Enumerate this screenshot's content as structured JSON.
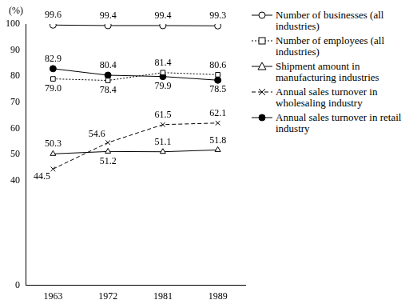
{
  "chart_data": {
    "type": "line",
    "ylabel": "(%)",
    "categories": [
      "1963",
      "1972",
      "1981",
      "1989"
    ],
    "ylim": [
      0,
      100
    ],
    "yticks": [
      0,
      40,
      50,
      60,
      70,
      80,
      90,
      100
    ],
    "grid": false,
    "legend": "right",
    "data_labels": true,
    "series": [
      {
        "name": "Number of businesses (all industries)",
        "color": "#000000",
        "marker": "circle-open",
        "line_style": "solid",
        "values": [
          99.6,
          99.4,
          99.4,
          99.3
        ],
        "value_labels": [
          "99.6",
          "99.4",
          "99.4",
          "99.3"
        ]
      },
      {
        "name": "Number of employees (all industries)",
        "color": "#000000",
        "marker": "square-open",
        "line_style": "dotted",
        "values": [
          79.0,
          78.4,
          81.4,
          80.6
        ],
        "value_labels": [
          "79.0",
          "78.4",
          "81.4",
          "80.6"
        ]
      },
      {
        "name": "Shipment amount in manufacturing industries",
        "color": "#000000",
        "marker": "triangle-open",
        "line_style": "solid",
        "values": [
          50.3,
          51.2,
          51.1,
          51.8
        ],
        "value_labels": [
          "50.3",
          "51.2",
          "51.1",
          "51.8"
        ]
      },
      {
        "name": "Annual sales turnover in wholesaling industry",
        "color": "#000000",
        "marker": "x",
        "line_style": "dashed",
        "values": [
          44.5,
          54.6,
          61.5,
          62.1
        ],
        "value_labels": [
          "44.5",
          "54.6",
          "61.5",
          "62.1"
        ]
      },
      {
        "name": "Annual sales turnover in retail industry",
        "color": "#000000",
        "marker": "circle",
        "line_style": "solid",
        "values": [
          82.9,
          80.4,
          79.9,
          78.5
        ],
        "value_labels": [
          "82.9",
          "80.4",
          "79.9",
          "78.5"
        ]
      }
    ]
  }
}
